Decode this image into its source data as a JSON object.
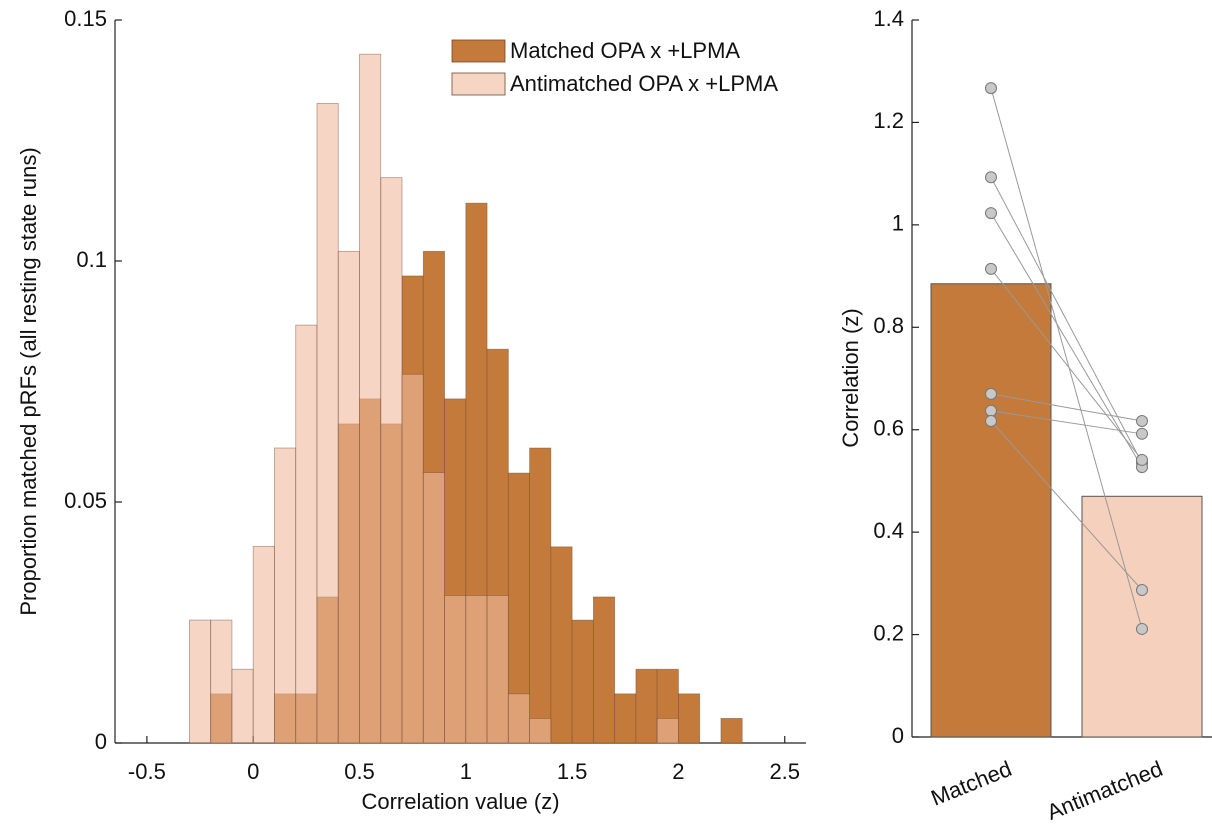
{
  "chart_data": [
    {
      "type": "histogram",
      "xlabel": "Correlation value (z)",
      "ylabel": "Proportion matched pRFs (all resting state runs)",
      "bins": [
        -0.3,
        -0.2,
        -0.1,
        0,
        0.1,
        0.2,
        0.3,
        0.4,
        0.5,
        0.6,
        0.7,
        0.8,
        0.9,
        1.0,
        1.1,
        1.2,
        1.3,
        1.4,
        1.5,
        1.6,
        1.7,
        1.8,
        1.9,
        2.0,
        2.1,
        2.2,
        2.3
      ],
      "series": [
        {
          "name": "Matched OPA x +LPMA",
          "color": "#c47a3a",
          "alpha": 1,
          "values": [
            0,
            0.0102,
            0,
            0,
            0.0102,
            0.0102,
            0.0303,
            0.0662,
            0.0714,
            0.0662,
            0.0969,
            0.102,
            0.0714,
            0.112,
            0.0817,
            0.056,
            0.0612,
            0.0407,
            0.0255,
            0.0303,
            0.0102,
            0.0153,
            0.0153,
            0.0102,
            0,
            0.0051
          ]
        },
        {
          "name": "Antimatched OPA x +LPMA",
          "color": "#f0b99c",
          "alpha": 0.6,
          "values": [
            0.0255,
            0.0255,
            0.0153,
            0.0408,
            0.0612,
            0.0867,
            0.1327,
            0.102,
            0.1429,
            0.1173,
            0.0765,
            0.0561,
            0.0306,
            0.0306,
            0.0306,
            0.0102,
            0.0051,
            0,
            0,
            0,
            0,
            0,
            0.0051,
            0,
            0,
            0
          ]
        }
      ],
      "xlim": [
        -0.65,
        2.6
      ],
      "xticks": [
        -0.5,
        0,
        0.5,
        1,
        1.5,
        2,
        2.5
      ],
      "ylim": [
        0,
        0.15
      ],
      "yticks": [
        0,
        0.05,
        0.1,
        0.15
      ],
      "legend": "upper right"
    },
    {
      "type": "bar",
      "ylabel": "Correlation (z)",
      "categories": [
        "Matched",
        "Antimatched"
      ],
      "values": [
        0.885,
        0.47
      ],
      "colors": [
        "#c47a3a",
        "#f5d0bd"
      ],
      "points": [
        [
          1.267,
          1.093,
          1.023,
          0.914,
          0.67,
          0.637,
          0.617
        ],
        [
          0.211,
          0.535,
          0.527,
          0.541,
          0.617,
          0.592,
          0.287
        ]
      ],
      "point_color": "#c8c8c8",
      "ylim": [
        0,
        1.4
      ],
      "yticks": [
        0,
        0.2,
        0.4,
        0.6,
        0.8,
        1,
        1.2,
        1.4
      ]
    }
  ]
}
